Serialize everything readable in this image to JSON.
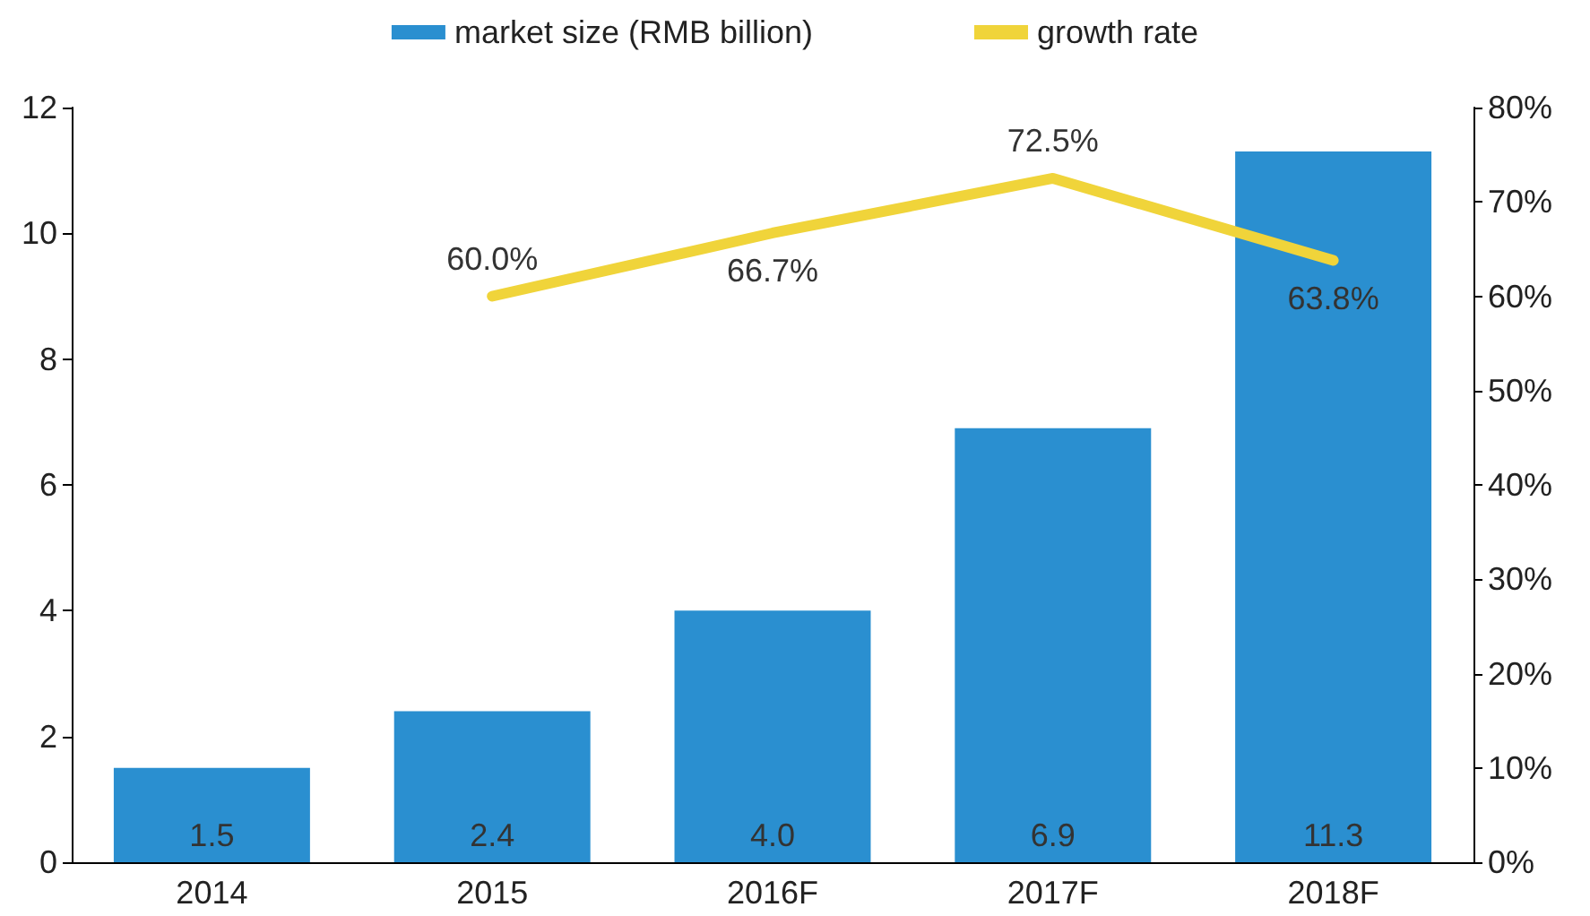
{
  "chart_data": {
    "type": "bar",
    "categories": [
      "2014",
      "2015",
      "2016F",
      "2017F",
      "2018F"
    ],
    "series": [
      {
        "name": "market size (RMB billion)",
        "color": "#2a8fd0",
        "values": [
          1.5,
          2.4,
          4.0,
          6.9,
          11.3
        ],
        "value_labels": [
          "1.5",
          "2.4",
          "4.0",
          "6.9",
          "11.3"
        ]
      },
      {
        "name": "growth rate",
        "type": "line",
        "axis": "y2",
        "color": "#f0d43a",
        "values": [
          null,
          60.0,
          66.7,
          72.5,
          63.8
        ],
        "value_labels": [
          null,
          "60.0%",
          "66.7%",
          "72.5%",
          "63.8%"
        ]
      }
    ],
    "ylim": [
      0,
      12
    ],
    "yticks": [
      0,
      2,
      4,
      6,
      8,
      10,
      12
    ],
    "y2lim": [
      0,
      80
    ],
    "y2ticks": [
      {
        "value": 0,
        "label": "0%"
      },
      {
        "value": 10,
        "label": "10%"
      },
      {
        "value": 20,
        "label": "20%"
      },
      {
        "value": 30,
        "label": "30%"
      },
      {
        "value": 40,
        "label": "40%"
      },
      {
        "value": 50,
        "label": "50%"
      },
      {
        "value": 60,
        "label": "60%"
      },
      {
        "value": 70,
        "label": "70%"
      },
      {
        "value": 80,
        "label": "80%"
      }
    ],
    "legend": "top",
    "grid": false,
    "marker": "none",
    "line_style": "solid"
  }
}
